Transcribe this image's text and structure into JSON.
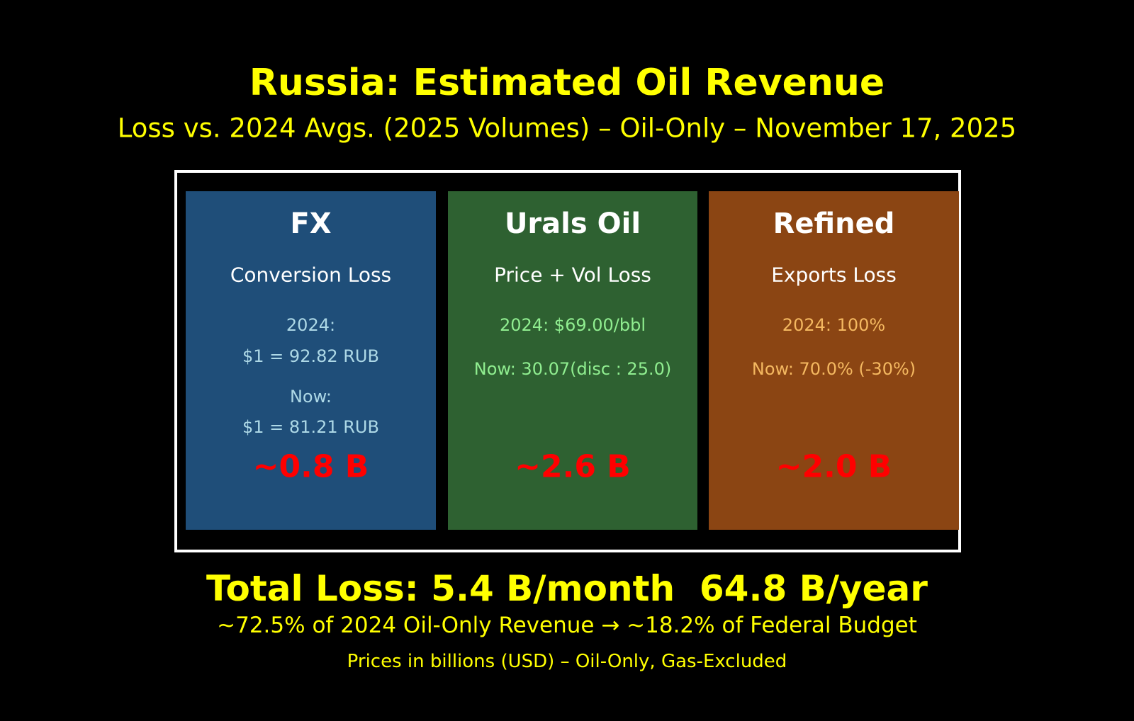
{
  "header": {
    "title": "Russia: Estimated Oil Revenue",
    "subtitle": "Loss vs. 2024 Avgs. (2025 Volumes) – Oil-Only – November 17, 2025"
  },
  "panels": [
    {
      "title": "FX",
      "subtitle": "Conversion Loss",
      "lines": [
        "2024:",
        "$1 = 92.82 RUB",
        "Now:",
        "$1 = 81.21 RUB"
      ],
      "loss": "~0.8 B"
    },
    {
      "title": "Urals Oil",
      "subtitle": "Price + Vol Loss",
      "lines": [
        "2024: $69.00/bbl",
        "Now: 30.07(disc : 25.0)"
      ],
      "loss": "~2.6 B"
    },
    {
      "title": "Refined",
      "subtitle": "Exports Loss",
      "lines": [
        "2024: 100%",
        "Now: 70.0% (-30%)"
      ],
      "loss": "~2.0 B"
    }
  ],
  "footer": {
    "total": "Total Loss: 5.4 B/month  64.8 B/year",
    "share": "~72.5% of 2024 Oil-Only Revenue → ~18.2% of Federal Budget",
    "note": "Prices in billions (USD) – Oil-Only, Gas-Excluded"
  }
}
